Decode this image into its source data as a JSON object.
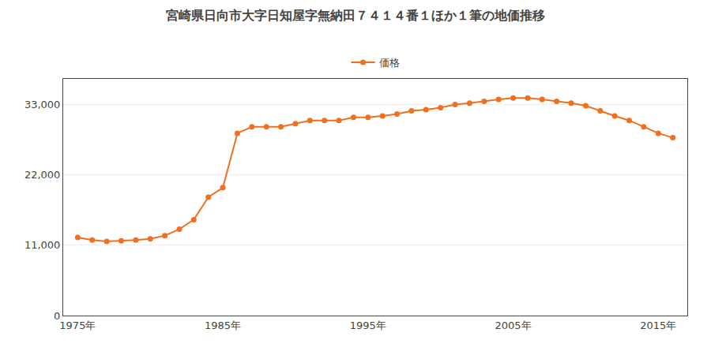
{
  "chart_data": {
    "type": "line",
    "title": "宮崎県日向市大字日知屋字無納田７４１４番１ほか１筆の地価推移",
    "x": [
      1975,
      1976,
      1977,
      1978,
      1979,
      1980,
      1981,
      1982,
      1983,
      1984,
      1985,
      1986,
      1987,
      1988,
      1989,
      1990,
      1991,
      1992,
      1993,
      1994,
      1995,
      1996,
      1997,
      1998,
      1999,
      2000,
      2001,
      2002,
      2003,
      2004,
      2005,
      2006,
      2007,
      2008,
      2009,
      2010,
      2011,
      2012,
      2013,
      2014,
      2015,
      2016
    ],
    "series": [
      {
        "name": "価格",
        "color": "#f07020",
        "marker": "circle",
        "values": [
          12200,
          11800,
          11600,
          11700,
          11800,
          12000,
          12500,
          13500,
          15000,
          18500,
          20000,
          28500,
          29500,
          29500,
          29500,
          30000,
          30500,
          30500,
          30500,
          31000,
          31000,
          31200,
          31500,
          32000,
          32200,
          32500,
          33000,
          33200,
          33500,
          33800,
          34000,
          34000,
          33800,
          33500,
          33200,
          32800,
          32000,
          31200,
          30500,
          29500,
          28500,
          27800
        ]
      }
    ],
    "xlim": [
      1974,
      2017
    ],
    "xticks": [
      {
        "value": 1975,
        "label": "1975年"
      },
      {
        "value": 1985,
        "label": "1985年"
      },
      {
        "value": 1995,
        "label": "1995年"
      },
      {
        "value": 2005,
        "label": "2005年"
      },
      {
        "value": 2015,
        "label": "2015年"
      }
    ],
    "ylim": [
      0,
      37000
    ],
    "yticks": [
      0,
      {
        "value": 11000,
        "label": "11,000"
      },
      {
        "value": 22000,
        "label": "22,000"
      },
      {
        "value": 33000,
        "label": "33,000"
      }
    ],
    "grid": "y",
    "legend": "top"
  }
}
